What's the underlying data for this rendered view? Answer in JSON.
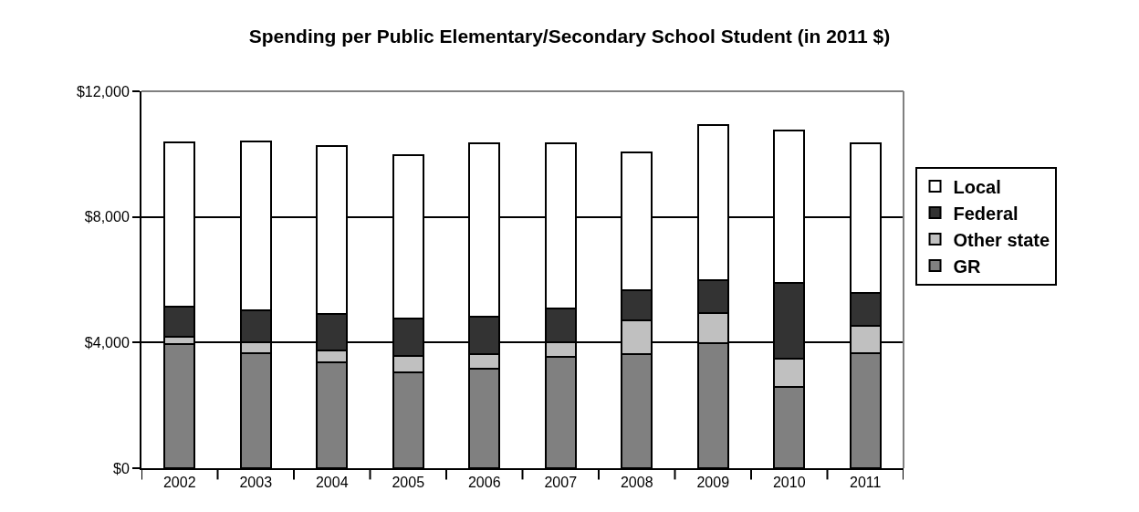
{
  "chart_data": {
    "type": "bar",
    "stacked": true,
    "title": "Spending per Public Elementary/Secondary School Student (in 2011 $)",
    "categories": [
      "2002",
      "2003",
      "2004",
      "2005",
      "2006",
      "2007",
      "2008",
      "2009",
      "2010",
      "2011"
    ],
    "series": [
      {
        "name": "GR",
        "color": "#808080",
        "values": [
          3950,
          3670,
          3370,
          3060,
          3180,
          3550,
          3630,
          3990,
          2580,
          3650
        ]
      },
      {
        "name": "Other state",
        "color": "#c0c0c0",
        "values": [
          230,
          350,
          370,
          520,
          440,
          470,
          1080,
          960,
          910,
          890
        ]
      },
      {
        "name": "Federal",
        "color": "#333333",
        "values": [
          970,
          1000,
          1170,
          1180,
          1200,
          1060,
          970,
          1050,
          2400,
          1040
        ]
      },
      {
        "name": "Local",
        "color": "#ffffff",
        "values": [
          5220,
          5390,
          5350,
          5200,
          5510,
          5260,
          4360,
          4920,
          4870,
          4760
        ]
      }
    ],
    "ylim": [
      0,
      12000
    ],
    "yticks": [
      {
        "value": 0,
        "label": "$0"
      },
      {
        "value": 4000,
        "label": "$4,000"
      },
      {
        "value": 8000,
        "label": "$8,000"
      },
      {
        "value": 12000,
        "label": "$12,000"
      }
    ],
    "grid": "y",
    "legend": "right"
  }
}
